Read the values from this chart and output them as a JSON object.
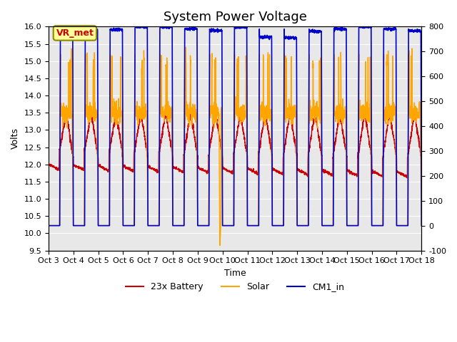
{
  "title": "System Power Voltage",
  "ylabel_left": "Volts",
  "xlabel": "Time",
  "xlim_start": 0,
  "xlim_end": 15,
  "ylim_left": [
    9.5,
    16.0
  ],
  "ylim_right": [
    -100,
    800
  ],
  "xtick_labels": [
    "Oct 3",
    "Oct 4",
    "Oct 5",
    "Oct 6",
    "Oct 7",
    "Oct 8",
    "Oct 9",
    "Oct 10",
    "Oct 11",
    "Oct 12",
    "Oct 13",
    "Oct 14",
    "Oct 15",
    "Oct 16",
    "Oct 17",
    "Oct 18"
  ],
  "legend_entries": [
    "23x Battery",
    "Solar",
    "CM1_in"
  ],
  "legend_colors": [
    "#cc0000",
    "#ffa500",
    "#0000cc"
  ],
  "annotation_text": "VR_met",
  "annotation_color": "#cc0000",
  "annotation_bg": "#ffff99",
  "annotation_border": "#8b8b00",
  "background_color": "#e8e8e8",
  "title_fontsize": 13,
  "axis_fontsize": 10
}
